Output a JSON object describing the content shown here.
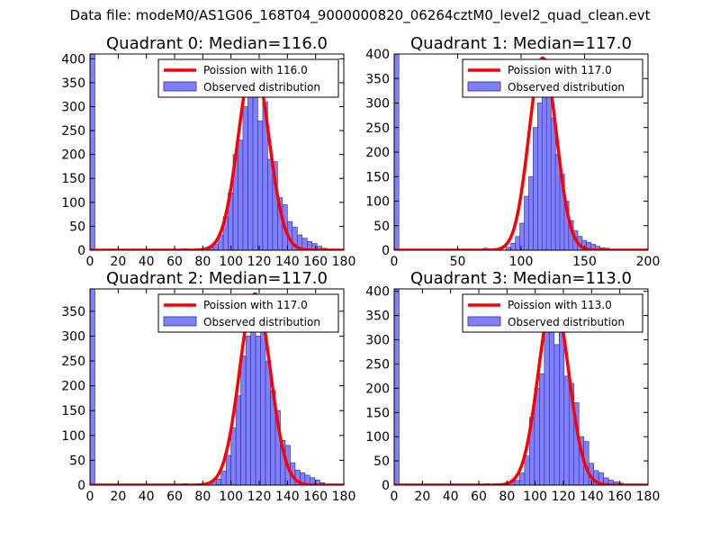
{
  "figure": {
    "title": "Data file: modeM0/AS1G06_168T04_9000000820_06264cztM0_level2_quad_clean.evt"
  },
  "colors": {
    "bar_fill": "#8080ff",
    "bar_edge": "#2a2a8a",
    "poisson_line": "#ff0000",
    "axes": "#000000"
  },
  "chart_data": [
    {
      "type": "bar",
      "title": "Quadrant 0: Median=116.0",
      "xlim": [
        0,
        180
      ],
      "ylim": [
        0,
        410
      ],
      "xticks": [
        "0",
        "20",
        "40",
        "60",
        "80",
        "100",
        "120",
        "140",
        "160",
        "180"
      ],
      "yticks": [
        "0",
        "50",
        "100",
        "150",
        "200",
        "250",
        "300",
        "350",
        "400"
      ],
      "bin_width": 3.5,
      "bins": [
        {
          "x": 0,
          "y": 410
        },
        {
          "x": 66,
          "y": 3
        },
        {
          "x": 76,
          "y": 3
        },
        {
          "x": 84,
          "y": 6
        },
        {
          "x": 87.5,
          "y": 12
        },
        {
          "x": 91,
          "y": 32
        },
        {
          "x": 94.5,
          "y": 70
        },
        {
          "x": 98,
          "y": 120
        },
        {
          "x": 101.5,
          "y": 200
        },
        {
          "x": 105,
          "y": 230
        },
        {
          "x": 108.5,
          "y": 300
        },
        {
          "x": 112,
          "y": 390
        },
        {
          "x": 115.5,
          "y": 380
        },
        {
          "x": 119,
          "y": 270
        },
        {
          "x": 122.5,
          "y": 310
        },
        {
          "x": 126,
          "y": 190
        },
        {
          "x": 129.5,
          "y": 185
        },
        {
          "x": 133,
          "y": 110
        },
        {
          "x": 136.5,
          "y": 95
        },
        {
          "x": 140,
          "y": 60
        },
        {
          "x": 143.5,
          "y": 48
        },
        {
          "x": 147,
          "y": 32
        },
        {
          "x": 150.5,
          "y": 25
        },
        {
          "x": 154,
          "y": 18
        },
        {
          "x": 157.5,
          "y": 14
        },
        {
          "x": 161,
          "y": 8
        },
        {
          "x": 164.5,
          "y": 4
        }
      ],
      "poisson": {
        "mean": 116.0,
        "peak": 395
      },
      "legend": {
        "line": "Poission with 116.0",
        "bars": "Observed distribution",
        "position": "top-right"
      }
    },
    {
      "type": "bar",
      "title": "Quadrant 1: Median=117.0",
      "xlim": [
        0,
        200
      ],
      "ylim": [
        0,
        400
      ],
      "xticks": [
        "0",
        "50",
        "100",
        "150",
        "200"
      ],
      "yticks": [
        "0",
        "50",
        "100",
        "150",
        "200",
        "250",
        "300",
        "350",
        "400"
      ],
      "bin_width": 3.7,
      "bins": [
        {
          "x": 0,
          "y": 400
        },
        {
          "x": 70,
          "y": 4
        },
        {
          "x": 82,
          "y": 4
        },
        {
          "x": 88,
          "y": 6
        },
        {
          "x": 92,
          "y": 14
        },
        {
          "x": 95.5,
          "y": 28
        },
        {
          "x": 99,
          "y": 55
        },
        {
          "x": 102.5,
          "y": 110
        },
        {
          "x": 106,
          "y": 150
        },
        {
          "x": 109.5,
          "y": 250
        },
        {
          "x": 113,
          "y": 300
        },
        {
          "x": 116.5,
          "y": 390
        },
        {
          "x": 120,
          "y": 330
        },
        {
          "x": 123.5,
          "y": 270
        },
        {
          "x": 127,
          "y": 195
        },
        {
          "x": 130.5,
          "y": 155
        },
        {
          "x": 134,
          "y": 100
        },
        {
          "x": 137.5,
          "y": 60
        },
        {
          "x": 141,
          "y": 40
        },
        {
          "x": 144.5,
          "y": 28
        },
        {
          "x": 148,
          "y": 20
        },
        {
          "x": 151.5,
          "y": 16
        },
        {
          "x": 155,
          "y": 12
        },
        {
          "x": 158.5,
          "y": 8
        },
        {
          "x": 162,
          "y": 5
        },
        {
          "x": 166,
          "y": 4
        }
      ],
      "poisson": {
        "mean": 117.0,
        "peak": 392
      },
      "legend": {
        "line": "Poission with 117.0",
        "bars": "Observed distribution",
        "position": "top-right"
      }
    },
    {
      "type": "bar",
      "title": "Quadrant 2: Median=117.0",
      "xlim": [
        0,
        180
      ],
      "ylim": [
        0,
        395
      ],
      "xticks": [
        "0",
        "20",
        "40",
        "60",
        "80",
        "100",
        "120",
        "140",
        "160",
        "180"
      ],
      "yticks": [
        "0",
        "50",
        "100",
        "150",
        "200",
        "250",
        "300",
        "350"
      ],
      "bin_width": 3.5,
      "bins": [
        {
          "x": 0,
          "y": 395
        },
        {
          "x": 66,
          "y": 3
        },
        {
          "x": 78,
          "y": 3
        },
        {
          "x": 86,
          "y": 6
        },
        {
          "x": 89.5,
          "y": 12
        },
        {
          "x": 93,
          "y": 28
        },
        {
          "x": 96.5,
          "y": 60
        },
        {
          "x": 100,
          "y": 115
        },
        {
          "x": 103.5,
          "y": 180
        },
        {
          "x": 107,
          "y": 260
        },
        {
          "x": 110.5,
          "y": 300
        },
        {
          "x": 114,
          "y": 375
        },
        {
          "x": 117.5,
          "y": 300
        },
        {
          "x": 121,
          "y": 320
        },
        {
          "x": 124.5,
          "y": 250
        },
        {
          "x": 128,
          "y": 190
        },
        {
          "x": 131.5,
          "y": 150
        },
        {
          "x": 135,
          "y": 90
        },
        {
          "x": 138.5,
          "y": 80
        },
        {
          "x": 142,
          "y": 45
        },
        {
          "x": 145.5,
          "y": 30
        },
        {
          "x": 149,
          "y": 25
        },
        {
          "x": 152.5,
          "y": 20
        },
        {
          "x": 156,
          "y": 15
        },
        {
          "x": 159.5,
          "y": 10
        },
        {
          "x": 163,
          "y": 5
        }
      ],
      "poisson": {
        "mean": 117.0,
        "peak": 385
      },
      "legend": {
        "line": "Poission with 117.0",
        "bars": "Observed distribution",
        "position": "top-right"
      }
    },
    {
      "type": "bar",
      "title": "Quadrant 3: Median=113.0",
      "xlim": [
        0,
        180
      ],
      "ylim": [
        0,
        405
      ],
      "xticks": [
        "0",
        "20",
        "40",
        "60",
        "80",
        "100",
        "120",
        "140",
        "160",
        "180"
      ],
      "yticks": [
        "0",
        "50",
        "100",
        "150",
        "200",
        "250",
        "300",
        "350",
        "400"
      ],
      "bin_width": 3.5,
      "bins": [
        {
          "x": 0,
          "y": 405
        },
        {
          "x": 64,
          "y": 3
        },
        {
          "x": 72,
          "y": 3
        },
        {
          "x": 82,
          "y": 6
        },
        {
          "x": 85.5,
          "y": 10
        },
        {
          "x": 89,
          "y": 25
        },
        {
          "x": 92.5,
          "y": 60
        },
        {
          "x": 96,
          "y": 140
        },
        {
          "x": 99.5,
          "y": 200
        },
        {
          "x": 103,
          "y": 230
        },
        {
          "x": 106.5,
          "y": 320
        },
        {
          "x": 110,
          "y": 360
        },
        {
          "x": 113.5,
          "y": 290
        },
        {
          "x": 117,
          "y": 320
        },
        {
          "x": 120.5,
          "y": 225
        },
        {
          "x": 124,
          "y": 210
        },
        {
          "x": 127.5,
          "y": 170
        },
        {
          "x": 131,
          "y": 100
        },
        {
          "x": 134.5,
          "y": 90
        },
        {
          "x": 138,
          "y": 45
        },
        {
          "x": 141.5,
          "y": 30
        },
        {
          "x": 145,
          "y": 25
        },
        {
          "x": 148.5,
          "y": 15
        },
        {
          "x": 152,
          "y": 10
        },
        {
          "x": 155.5,
          "y": 7
        },
        {
          "x": 159,
          "y": 4
        }
      ],
      "poisson": {
        "mean": 113.0,
        "peak": 390
      },
      "legend": {
        "line": "Poission with 113.0",
        "bars": "Observed distribution",
        "position": "top-right"
      }
    }
  ]
}
